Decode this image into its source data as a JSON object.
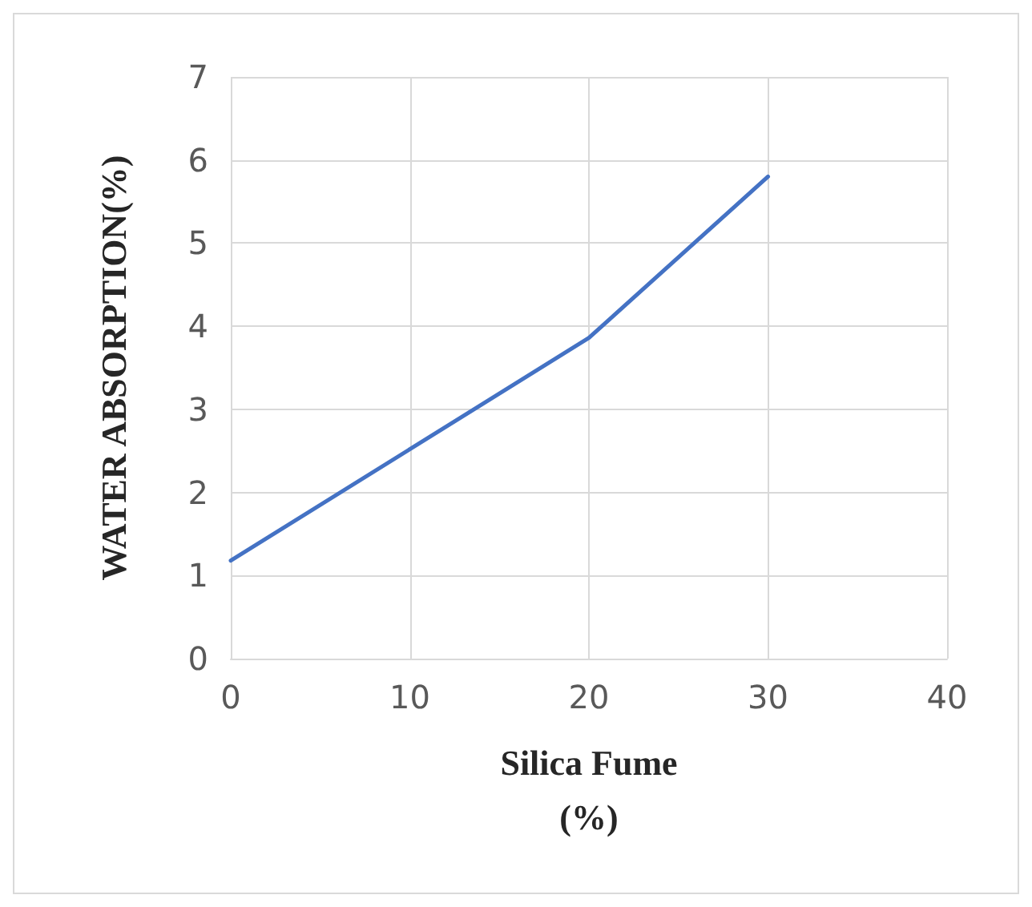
{
  "chart_data": {
    "type": "line",
    "xlabel": "Silica Fume\n(%)",
    "ylabel": "WATER ABSORPTION(%)",
    "x": [
      0,
      10,
      20,
      30
    ],
    "series": [
      {
        "color": "#4472c4",
        "values": [
          1.18,
          2.52,
          3.86,
          5.8
        ]
      }
    ],
    "xlim": [
      0,
      40
    ],
    "xticks": [
      0,
      10,
      20,
      30,
      40
    ],
    "ylim": [
      0,
      7
    ],
    "yticks": [
      0,
      1,
      2,
      3,
      4,
      5,
      6,
      7
    ],
    "grid": true,
    "marker": "none",
    "line_style": "solid"
  }
}
